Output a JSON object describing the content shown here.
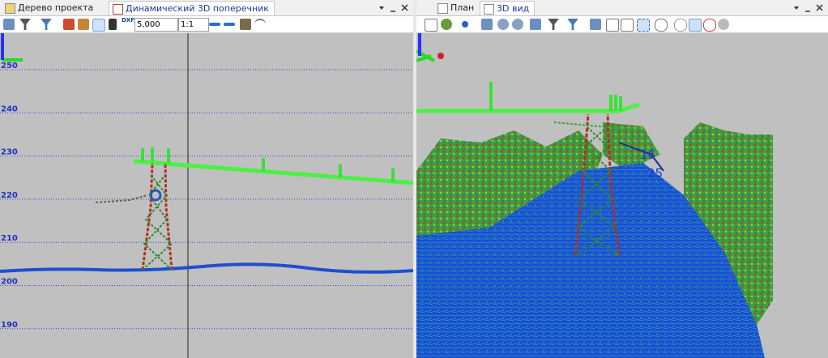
{
  "left_pane": {
    "tabs": [
      "Дерево проекта",
      "Динамический 3D поперечник"
    ],
    "toolbar": {
      "step_input": "5,000",
      "scale_select": "1:1",
      "dxf_label": "DXF"
    },
    "elevation_labels": [
      "250",
      "240",
      "230",
      "220",
      "210",
      "200",
      "190"
    ]
  },
  "right_pane": {
    "tabs": [
      "План",
      "3D вид"
    ],
    "point_labels": [
      "16",
      "25"
    ]
  }
}
